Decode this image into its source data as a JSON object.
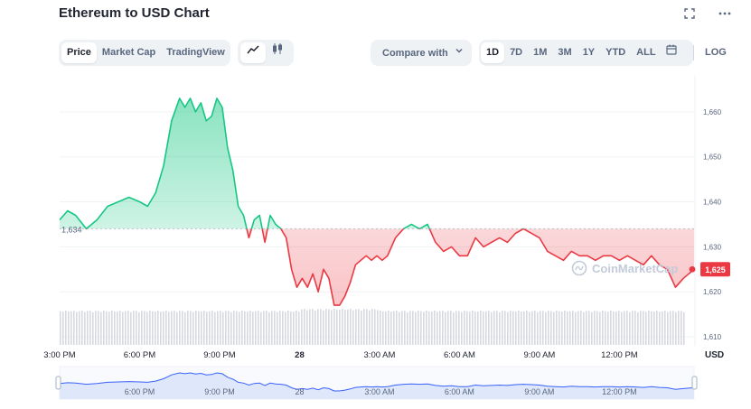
{
  "header": {
    "title": "Ethereum to USD Chart"
  },
  "top_icons": {
    "expand": "expand-icon",
    "more": "more-icon"
  },
  "tabs": [
    {
      "label": "Price",
      "active": true
    },
    {
      "label": "Market Cap",
      "active": false
    },
    {
      "label": "TradingView",
      "active": false
    }
  ],
  "chart_type_toggle": [
    {
      "icon": "line-chart-icon",
      "active": true
    },
    {
      "icon": "candlestick-icon",
      "active": false
    }
  ],
  "compare_label": "Compare with",
  "ranges": [
    {
      "label": "1D",
      "active": true
    },
    {
      "label": "7D",
      "active": false
    },
    {
      "label": "1M",
      "active": false
    },
    {
      "label": "3M",
      "active": false
    },
    {
      "label": "1Y",
      "active": false
    },
    {
      "label": "YTD",
      "active": false
    },
    {
      "label": "ALL",
      "active": false
    }
  ],
  "log_label": "LOG",
  "watermark": "CoinMarketCap",
  "colors": {
    "up": "#16c784",
    "down": "#ea3943",
    "grid": "#eff2f5",
    "axis_text": "#58667e",
    "volume": "#d6d9e0",
    "navigator_fill": "#dfe8fb",
    "navigator_line": "#3861fb"
  },
  "chart_data": {
    "type": "line",
    "title": "Ethereum to USD Chart",
    "baseline": 1634,
    "baseline_label": "1,634",
    "last_price": 1625,
    "last_price_label": "1,625",
    "y_unit_label": "USD",
    "ylim": [
      1608,
      1668
    ],
    "y_ticks": [
      {
        "value": 1660,
        "label": "1,660"
      },
      {
        "value": 1650,
        "label": "1,650"
      },
      {
        "value": 1640,
        "label": "1,640"
      },
      {
        "value": 1630,
        "label": "1,630"
      },
      {
        "value": 1620,
        "label": "1,620"
      },
      {
        "value": 1610,
        "label": "1,610"
      }
    ],
    "xlim": [
      15.0,
      38.8
    ],
    "x_ticks": [
      {
        "value": 15.0,
        "label": "3:00 PM"
      },
      {
        "value": 18.0,
        "label": "6:00 PM"
      },
      {
        "value": 21.0,
        "label": "9:00 PM"
      },
      {
        "value": 24.0,
        "label": "28"
      },
      {
        "value": 27.0,
        "label": "3:00 AM"
      },
      {
        "value": 30.0,
        "label": "6:00 AM"
      },
      {
        "value": 33.0,
        "label": "9:00 AM"
      },
      {
        "value": 36.0,
        "label": "12:00 PM"
      }
    ],
    "nav_ticks": [
      {
        "value": 18.0,
        "label": "6:00 PM"
      },
      {
        "value": 21.0,
        "label": "9:00 PM"
      },
      {
        "value": 24.0,
        "label": "28"
      },
      {
        "value": 27.0,
        "label": "3:00 AM"
      },
      {
        "value": 30.0,
        "label": "6:00 AM"
      },
      {
        "value": 33.0,
        "label": "9:00 AM"
      },
      {
        "value": 36.0,
        "label": "12:00 PM"
      }
    ],
    "series": [
      {
        "x": [
          15.0,
          15.3,
          15.6,
          16.0,
          16.4,
          16.8,
          17.2,
          17.6,
          18.0,
          18.3,
          18.6,
          18.9,
          19.2,
          19.5,
          19.7,
          19.9,
          20.1,
          20.3,
          20.5,
          20.7,
          20.9,
          21.1,
          21.3,
          21.5,
          21.7,
          21.9,
          22.1,
          22.3,
          22.5,
          22.7,
          22.9,
          23.1,
          23.3,
          23.5,
          23.7,
          23.9,
          24.1,
          24.3,
          24.5,
          24.7,
          24.9,
          25.1,
          25.3,
          25.5,
          25.7,
          25.9,
          26.1,
          26.3,
          26.5,
          26.7,
          26.9,
          27.1,
          27.3,
          27.6,
          27.9,
          28.2,
          28.5,
          28.8,
          29.1,
          29.4,
          29.7,
          30.0,
          30.3,
          30.6,
          30.9,
          31.2,
          31.5,
          31.8,
          32.1,
          32.4,
          32.7,
          33.0,
          33.3,
          33.6,
          33.9,
          34.2,
          34.5,
          34.8,
          35.1,
          35.4,
          35.7,
          36.0,
          36.3,
          36.6,
          36.9,
          37.2,
          37.5,
          37.8,
          38.1,
          38.4,
          38.6,
          38.8
        ],
        "y": [
          1636,
          1638,
          1637,
          1634,
          1636,
          1639,
          1640,
          1641,
          1640,
          1639,
          1642,
          1648,
          1658,
          1663,
          1661,
          1663,
          1660,
          1662,
          1658,
          1659,
          1663,
          1661,
          1652,
          1647,
          1639,
          1637,
          1632,
          1636,
          1637,
          1631,
          1637,
          1635,
          1634,
          1632,
          1625,
          1621,
          1623,
          1621,
          1624,
          1620,
          1625,
          1623,
          1617,
          1617,
          1619,
          1622,
          1626,
          1627,
          1628,
          1627,
          1628,
          1627,
          1628,
          1632,
          1634,
          1635,
          1634,
          1635,
          1631,
          1629,
          1630,
          1628,
          1628,
          1632,
          1630,
          1631,
          1632,
          1631,
          1633,
          1634,
          1633,
          1632,
          1629,
          1628,
          1627,
          1629,
          1628,
          1628,
          1627,
          1628,
          1628,
          1627,
          1628,
          1627,
          1626,
          1628,
          1626,
          1625,
          1621,
          1623,
          1624,
          1625
        ]
      }
    ]
  }
}
